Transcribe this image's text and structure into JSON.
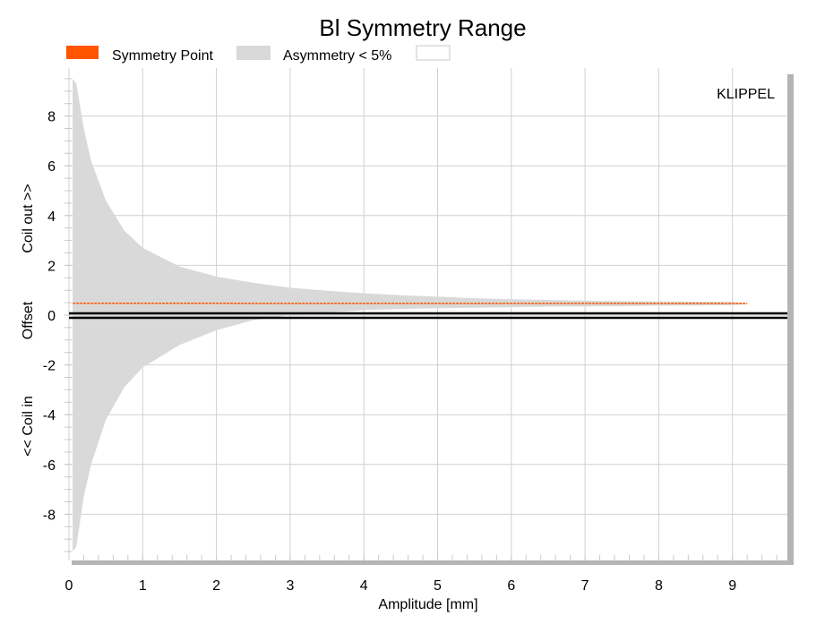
{
  "chart_data": {
    "type": "area",
    "title": "Bl Symmetry Range",
    "xlabel": "Amplitude [mm]",
    "ylabel_parts": [
      "<< Coil in",
      "Offset",
      "Coil out >>"
    ],
    "xlim": [
      0,
      9.75
    ],
    "ylim": [
      -10.0,
      10.0
    ],
    "xticks": [
      0,
      1,
      2,
      3,
      4,
      5,
      6,
      7,
      8,
      9
    ],
    "yticks": [
      -8,
      -6,
      -4,
      -2,
      0,
      2,
      4,
      6,
      8
    ],
    "grid": true,
    "watermark": "KLIPPEL",
    "legend": {
      "placement": "top-left",
      "items": [
        {
          "label": "Symmetry Point",
          "color": "#ff5500"
        },
        {
          "label": "Asymmetry < 5%",
          "color": "#d9d9d9"
        }
      ]
    },
    "x": [
      0.05,
      0.1,
      0.2,
      0.3,
      0.5,
      0.75,
      1.0,
      1.5,
      2.0,
      2.5,
      3.0,
      3.5,
      4.0,
      4.5,
      5.0,
      5.5,
      6.0,
      6.5,
      7.0,
      7.5,
      8.0,
      8.5,
      9.0,
      9.2
    ],
    "series": [
      {
        "name": "Asymmetry < 5%",
        "upper": [
          9.5,
          9.3,
          7.5,
          6.2,
          4.6,
          3.4,
          2.7,
          1.95,
          1.55,
          1.3,
          1.1,
          0.98,
          0.88,
          0.8,
          0.74,
          0.68,
          0.64,
          0.61,
          0.58,
          0.56,
          0.55,
          0.54,
          0.53,
          0.46
        ],
        "lower": [
          -9.5,
          -9.3,
          -7.3,
          -6.0,
          -4.2,
          -2.9,
          -2.1,
          -1.2,
          -0.6,
          -0.2,
          0.0,
          0.1,
          0.2,
          0.25,
          0.28,
          0.3,
          0.32,
          0.34,
          0.35,
          0.36,
          0.38,
          0.39,
          0.4,
          0.44
        ],
        "color": "#d9d9d9"
      },
      {
        "name": "Symmetry Point",
        "values": [
          0.48,
          0.48,
          0.48,
          0.48,
          0.48,
          0.48,
          0.48,
          0.48,
          0.48,
          0.47,
          0.47,
          0.47,
          0.47,
          0.47,
          0.47,
          0.47,
          0.47,
          0.47,
          0.47,
          0.47,
          0.47,
          0.47,
          0.47,
          0.47
        ],
        "color": "#ff5500"
      }
    ],
    "zero_line": 0
  }
}
